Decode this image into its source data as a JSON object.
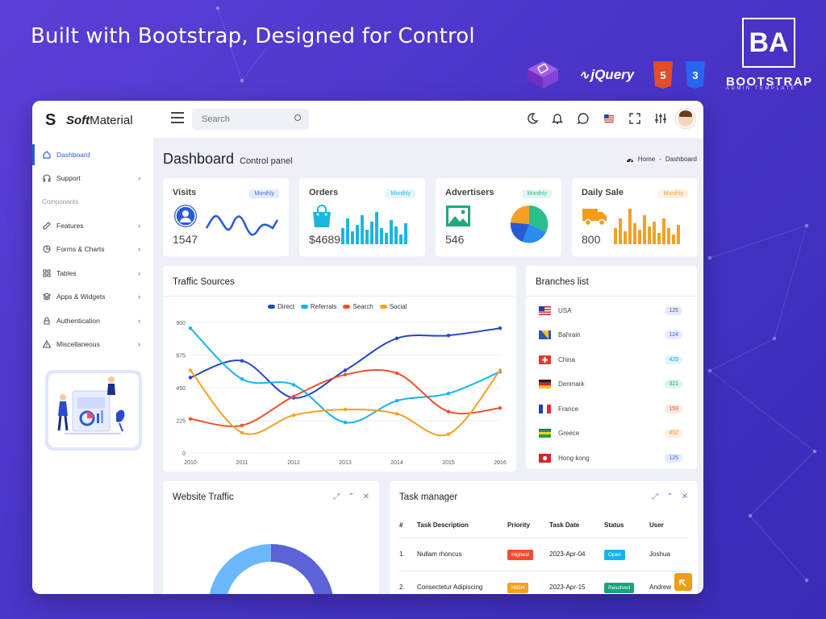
{
  "promo": {
    "title": "Built with Bootstrap, Designed for Control",
    "tech": {
      "jquery": "jQuery",
      "html_cap": "HTML",
      "css_cap": "CSS",
      "html_num": "5",
      "css_num": "3"
    },
    "brand_logo": "BA",
    "brand_name": "BOOTSTRAP",
    "brand_sub": "ADMIN TEMPLATE"
  },
  "topbar": {
    "logo_bold": "Soft",
    "logo_rest": "Material",
    "search_placeholder": "Search",
    "icons": [
      "moon-icon",
      "bell-icon",
      "chat-icon",
      "us-flag-icon",
      "fullscreen-icon",
      "settings-sliders-icon"
    ]
  },
  "sidebar": {
    "items_top": [
      {
        "label": "Dashboard",
        "icon": "home-icon",
        "active": true
      },
      {
        "label": "Support",
        "icon": "headset-icon",
        "chevron": true
      }
    ],
    "section": "Components",
    "items": [
      {
        "label": "Features",
        "icon": "edit-icon"
      },
      {
        "label": "Forms & Charts",
        "icon": "pie-icon"
      },
      {
        "label": "Tables",
        "icon": "grid-icon"
      },
      {
        "label": "Apps & Widgets",
        "icon": "layers-icon"
      },
      {
        "label": "Authentication",
        "icon": "lock-icon"
      },
      {
        "label": "Miscellaneous",
        "icon": "alert-icon"
      }
    ]
  },
  "header": {
    "title": "Dashboard",
    "subtitle": "Control panel",
    "crumb_home": "Home",
    "crumb_sep": "-",
    "crumb_current": "Dashboard"
  },
  "stats": [
    {
      "title": "Visits",
      "badge": "Monthly",
      "value": "1547",
      "badge_bg": "#e3ebff",
      "badge_color": "#4a6fdc",
      "accent": "#2a5bd7"
    },
    {
      "title": "Orders",
      "badge": "Monthly",
      "value": "$4689",
      "badge_bg": "#e2f6fb",
      "badge_color": "#2bb3d6",
      "accent": "#1cb5e0"
    },
    {
      "title": "Advertisers",
      "badge": "Monthly",
      "value": "546",
      "badge_bg": "#e2f7ef",
      "badge_color": "#2eb887",
      "accent": "#20a97a"
    },
    {
      "title": "Daily Sale",
      "badge": "Monthly",
      "value": "800",
      "badge_bg": "#fdf1e0",
      "badge_color": "#e9a23b",
      "accent": "#f39c12"
    }
  ],
  "traffic": {
    "title": "Traffic Sources"
  },
  "chart_data": {
    "type": "line",
    "title": "Traffic Sources",
    "x": [
      "2010",
      "2011",
      "2012",
      "2013",
      "2014",
      "2015",
      "2016"
    ],
    "ylim": [
      0,
      900
    ],
    "yticks": [
      "0",
      "225",
      "450",
      "675",
      "900"
    ],
    "series": [
      {
        "name": "Direct",
        "color": "#2346c8",
        "values": [
          520,
          635,
          380,
          570,
          790,
          810,
          860
        ]
      },
      {
        "name": "Referrals",
        "color": "#14b4f0",
        "values": [
          860,
          510,
          470,
          210,
          360,
          410,
          560
        ]
      },
      {
        "name": "Search",
        "color": "#f5502d",
        "values": [
          235,
          190,
          390,
          540,
          550,
          285,
          310
        ]
      },
      {
        "name": "Social",
        "color": "#f5a023",
        "values": [
          570,
          140,
          260,
          300,
          270,
          130,
          570
        ]
      }
    ],
    "grid": true,
    "legend": "top-center"
  },
  "branches": {
    "title": "Branches list",
    "items": [
      {
        "name": "USA",
        "count": "125",
        "bg": "#e6ebf7",
        "fg": "#4a5b8a"
      },
      {
        "name": "Bahrain",
        "count": "124",
        "bg": "#e3ebff",
        "fg": "#3f62c8"
      },
      {
        "name": "China",
        "count": "425",
        "bg": "#dff5fb",
        "fg": "#22a7cf"
      },
      {
        "name": "Denmark",
        "count": "321",
        "bg": "#dff5ea",
        "fg": "#22a06b"
      },
      {
        "name": "France",
        "count": "159",
        "bg": "#fde7e3",
        "fg": "#e0553b"
      },
      {
        "name": "Greece",
        "count": "452",
        "bg": "#fdeedd",
        "fg": "#e8932a"
      },
      {
        "name": "Hong kong",
        "count": "125",
        "bg": "#e3ebff",
        "fg": "#3f62c8"
      }
    ]
  },
  "website_traffic": {
    "title": "Website Traffic"
  },
  "tasks": {
    "title": "Task manager",
    "headers": [
      "#",
      "Task Description",
      "Priority",
      "Task Date",
      "Status",
      "User"
    ],
    "rows": [
      {
        "num": "1.",
        "desc": "Nullam rhoncus",
        "priority": "Highest",
        "priority_color": "#f24c2e",
        "date": "2023-Apr-04",
        "status": "Open",
        "status_color": "#14b4f0",
        "user": "Joshua"
      },
      {
        "num": "2.",
        "desc": "Consectetur Adipiscing",
        "priority": "HIGH",
        "priority_color": "#f5a023",
        "date": "2023-Apr-15",
        "status": "Resolved",
        "status_color": "#1aa37a",
        "user": "Andrew"
      }
    ]
  }
}
